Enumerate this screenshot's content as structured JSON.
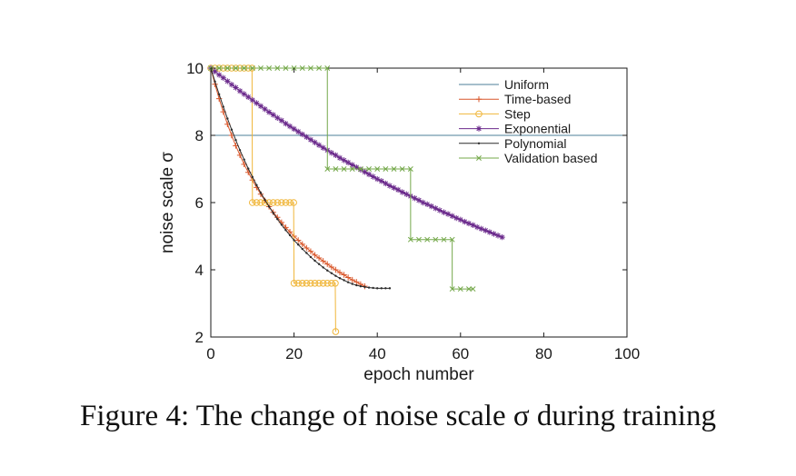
{
  "caption": {
    "text": "Figure 4: The change of noise scale σ during training"
  },
  "chart_data": {
    "type": "line",
    "xlabel": "epoch number",
    "ylabel": "noise scale σ",
    "xlim": [
      0,
      100
    ],
    "ylim": [
      2,
      10
    ],
    "xticks": [
      0,
      20,
      40,
      60,
      80,
      100
    ],
    "yticks": [
      2,
      4,
      6,
      8,
      10
    ],
    "grid": false,
    "legend_position": "top-right",
    "series": [
      {
        "name": "Uniform",
        "color": "#4d7f9a",
        "marker": "none",
        "x": [
          0,
          100
        ],
        "y": [
          8,
          8
        ]
      },
      {
        "name": "Time-based",
        "color": "#d9572b",
        "marker": "plus",
        "x": [
          0,
          1,
          2,
          3,
          4,
          5,
          6,
          7,
          8,
          9,
          10,
          11,
          12,
          13,
          14,
          15,
          16,
          17,
          18,
          19,
          20,
          21,
          22,
          23,
          24,
          25,
          26,
          27,
          28,
          29,
          30,
          31,
          32,
          33,
          34,
          35,
          36,
          37
        ],
        "y": [
          10.0,
          9.52,
          9.09,
          8.7,
          8.33,
          8.0,
          7.69,
          7.41,
          7.14,
          6.9,
          6.67,
          6.45,
          6.25,
          6.06,
          5.88,
          5.71,
          5.56,
          5.41,
          5.26,
          5.13,
          5.0,
          4.88,
          4.76,
          4.65,
          4.55,
          4.44,
          4.35,
          4.26,
          4.17,
          4.08,
          4.0,
          3.92,
          3.85,
          3.77,
          3.7,
          3.64,
          3.57,
          3.51
        ]
      },
      {
        "name": "Step",
        "color": "#f0b63a",
        "marker": "circle",
        "x": [
          0,
          1,
          2,
          3,
          4,
          5,
          6,
          7,
          8,
          9,
          9.9,
          10,
          11,
          12,
          13,
          14,
          15,
          16,
          17,
          18,
          19,
          19.9,
          20,
          21,
          22,
          23,
          24,
          25,
          26,
          27,
          28,
          29,
          29.9,
          30
        ],
        "y": [
          10,
          10,
          10,
          10,
          10,
          10,
          10,
          10,
          10,
          10,
          10,
          6,
          6,
          6,
          6,
          6,
          6,
          6,
          6,
          6,
          6,
          6,
          3.6,
          3.6,
          3.6,
          3.6,
          3.6,
          3.6,
          3.6,
          3.6,
          3.6,
          3.6,
          3.6,
          2.16
        ]
      },
      {
        "name": "Exponential",
        "color": "#6b2a8c",
        "marker": "asterisk",
        "x": [
          0,
          1,
          2,
          3,
          4,
          5,
          6,
          7,
          8,
          9,
          10,
          11,
          12,
          13,
          14,
          15,
          16,
          17,
          18,
          19,
          20,
          21,
          22,
          23,
          24,
          25,
          26,
          27,
          28,
          29,
          30,
          31,
          32,
          33,
          34,
          35,
          36,
          37,
          38,
          39,
          40,
          41,
          42,
          43,
          44,
          45,
          46,
          47,
          48,
          49,
          50,
          51,
          52,
          53,
          54,
          55,
          56,
          57,
          58,
          59,
          60,
          61,
          62,
          63,
          64,
          65,
          66,
          67,
          68,
          69,
          70
        ],
        "y": [
          10.0,
          9.9,
          9.8,
          9.71,
          9.61,
          9.51,
          9.42,
          9.32,
          9.23,
          9.14,
          9.05,
          8.96,
          8.87,
          8.78,
          8.69,
          8.61,
          8.52,
          8.44,
          8.35,
          8.27,
          8.19,
          8.11,
          8.03,
          7.95,
          7.87,
          7.79,
          7.71,
          7.63,
          7.56,
          7.48,
          7.41,
          7.33,
          7.26,
          7.19,
          7.12,
          7.05,
          6.98,
          6.91,
          6.84,
          6.77,
          6.7,
          6.64,
          6.57,
          6.5,
          6.44,
          6.38,
          6.31,
          6.25,
          6.19,
          6.13,
          6.07,
          6.0,
          5.95,
          5.89,
          5.83,
          5.77,
          5.71,
          5.66,
          5.6,
          5.54,
          5.49,
          5.43,
          5.38,
          5.33,
          5.27,
          5.22,
          5.17,
          5.12,
          5.07,
          5.02,
          4.97
        ]
      },
      {
        "name": "Polynomial",
        "color": "#2b2b2b",
        "marker": "dot",
        "x": [
          0,
          1,
          2,
          3,
          4,
          5,
          6,
          7,
          8,
          9,
          10,
          11,
          12,
          13,
          14,
          15,
          16,
          17,
          18,
          19,
          20,
          21,
          22,
          23,
          24,
          25,
          26,
          27,
          28,
          29,
          30,
          31,
          32,
          33,
          34,
          35,
          36,
          37,
          38,
          39,
          40,
          41,
          42,
          43
        ],
        "y": [
          10.0,
          9.6,
          9.22,
          8.85,
          8.5,
          8.17,
          7.86,
          7.56,
          7.28,
          7.01,
          6.76,
          6.52,
          6.29,
          6.08,
          5.88,
          5.69,
          5.51,
          5.34,
          5.18,
          5.03,
          4.88,
          4.75,
          4.62,
          4.5,
          4.38,
          4.27,
          4.17,
          4.07,
          3.98,
          3.9,
          3.82,
          3.75,
          3.69,
          3.63,
          3.58,
          3.54,
          3.51,
          3.49,
          3.47,
          3.46,
          3.45,
          3.45,
          3.45,
          3.45
        ]
      },
      {
        "name": "Validation based",
        "color": "#74a84a",
        "marker": "x",
        "x": [
          0,
          2,
          4,
          6,
          8,
          10,
          12,
          14,
          16,
          18,
          20,
          22,
          24,
          26,
          28,
          28.01,
          30,
          32,
          34,
          36,
          38,
          40,
          42,
          44,
          46,
          48,
          48.01,
          50,
          52,
          54,
          56,
          58,
          58.01,
          60,
          62,
          63
        ],
        "y": [
          10,
          10,
          10,
          10,
          10,
          10,
          10,
          10,
          10,
          10,
          10,
          10,
          10,
          10,
          10,
          7,
          7,
          7,
          7,
          7,
          7,
          7,
          7,
          7,
          7,
          7,
          4.9,
          4.9,
          4.9,
          4.9,
          4.9,
          4.9,
          3.43,
          3.43,
          3.43,
          3.43
        ]
      }
    ]
  }
}
